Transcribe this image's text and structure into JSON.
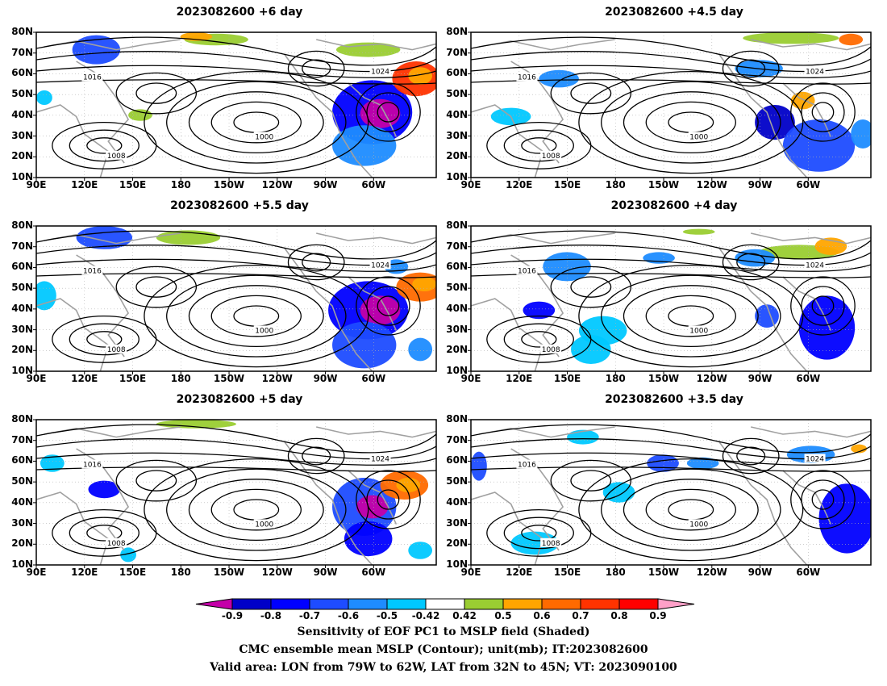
{
  "panels": [
    {
      "title": "2023082600  +6  day"
    },
    {
      "title": "2023082600  +4.5  day"
    },
    {
      "title": "2023082600  +5.5  day"
    },
    {
      "title": "2023082600  +4  day"
    },
    {
      "title": "2023082600  +5  day"
    },
    {
      "title": "2023082600  +3.5  day"
    }
  ],
  "lat_labels": [
    "80N",
    "70N",
    "60N",
    "50N",
    "40N",
    "30N",
    "20N",
    "10N"
  ],
  "lon_labels": [
    "90E",
    "120E",
    "150E",
    "180",
    "150W",
    "120W",
    "90W",
    "60W"
  ],
  "contour_labels": [
    "1000",
    "1008",
    "1016",
    "1024"
  ],
  "colorbar": {
    "ticks": [
      "-0.9",
      "-0.8",
      "-0.7",
      "-0.6",
      "-0.5",
      "-0.42",
      "0.42",
      "0.5",
      "0.6",
      "0.7",
      "0.8",
      "0.9"
    ],
    "colors": [
      "#c400a8",
      "#0000c8",
      "#0000ff",
      "#1e4cff",
      "#1e8cff",
      "#00c8ff",
      "#ffffff",
      "#9acd32",
      "#ffa500",
      "#ff6a00",
      "#ff3300",
      "#ff0000",
      "#ffa0c8"
    ]
  },
  "caption": {
    "line1": "Sensitivity of EOF PC1 to MSLP field (Shaded)",
    "line2": "CMC ensemble mean MSLP (Contour); unit(mb); IT:2023082600",
    "line3": "Valid area: LON from 79W to 62W, LAT from 32N to 45N; VT: 2023090100"
  }
}
